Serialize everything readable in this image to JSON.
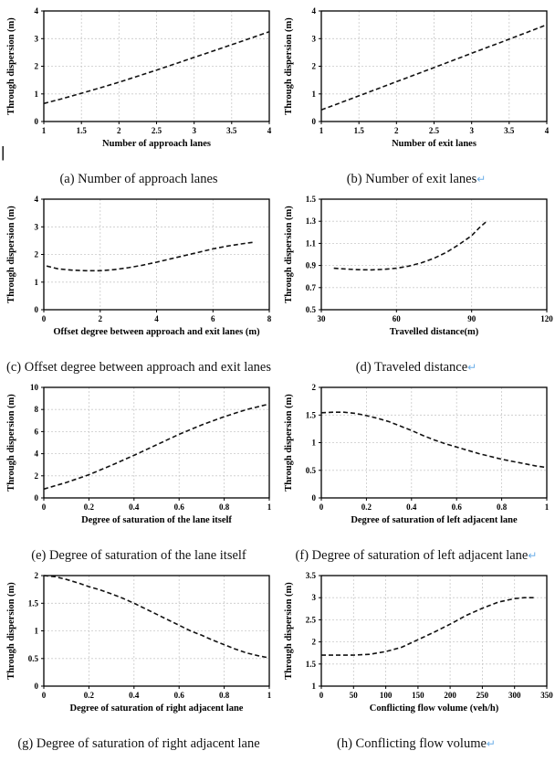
{
  "page": {
    "cursor_mark": "|",
    "return_mark": "↵",
    "return_mark_color": "#6fb0e8",
    "curve_color": "#121212",
    "grid_color": "#c9c9c9",
    "shared_ylabel": "Through dispersion (m)"
  },
  "chart_data": [
    {
      "type": "line",
      "id": "a",
      "caption": "(a) Number of approach lanes",
      "caption_return": false,
      "xlabel": "Number of approach lanes",
      "ylabel": "Through dispersion (m)",
      "xlim": [
        1,
        4
      ],
      "ylim": [
        0,
        4
      ],
      "xticks": [
        1,
        1.5,
        2,
        2.5,
        3,
        3.5,
        4
      ],
      "xtick_labels": [
        "1",
        "1.5",
        "2",
        "2.5",
        "3",
        "3.5",
        "4"
      ],
      "yticks": [
        0,
        1,
        2,
        3,
        4
      ],
      "ytick_labels": [
        "0",
        "1",
        "2",
        "3",
        "4"
      ],
      "grid": true,
      "line_style": "dashed",
      "points": [
        [
          1,
          0.65
        ],
        [
          1.25,
          0.83
        ],
        [
          1.5,
          1.02
        ],
        [
          1.75,
          1.22
        ],
        [
          2,
          1.42
        ],
        [
          2.25,
          1.64
        ],
        [
          2.5,
          1.86
        ],
        [
          2.75,
          2.09
        ],
        [
          3,
          2.32
        ],
        [
          3.25,
          2.55
        ],
        [
          3.5,
          2.78
        ],
        [
          3.75,
          3.01
        ],
        [
          4,
          3.25
        ]
      ]
    },
    {
      "type": "line",
      "id": "b",
      "caption": "(b) Number of exit lanes",
      "caption_return": true,
      "xlabel": "Number of exit lanes",
      "ylabel": "Through dispersion (m)",
      "xlim": [
        1,
        4
      ],
      "ylim": [
        0,
        4
      ],
      "xticks": [
        1,
        1.5,
        2,
        2.5,
        3,
        3.5,
        4
      ],
      "xtick_labels": [
        "1",
        "1.5",
        "2",
        "2.5",
        "3",
        "3.5",
        "4"
      ],
      "yticks": [
        0,
        1,
        2,
        3,
        4
      ],
      "ytick_labels": [
        "0",
        "1",
        "2",
        "3",
        "4"
      ],
      "grid": true,
      "line_style": "dashed",
      "points": [
        [
          1,
          0.42
        ],
        [
          1.5,
          0.93
        ],
        [
          2,
          1.44
        ],
        [
          2.5,
          1.95
        ],
        [
          3,
          2.47
        ],
        [
          3.5,
          2.98
        ],
        [
          4,
          3.5
        ]
      ]
    },
    {
      "type": "line",
      "id": "c",
      "caption": "(c) Offset degree between approach and exit lanes",
      "caption_return": false,
      "xlabel": "Offset degree between approach and exit lanes (m)",
      "ylabel": "Through dispersion (m)",
      "xlim": [
        0,
        8
      ],
      "ylim": [
        0,
        4
      ],
      "xticks": [
        0,
        2,
        4,
        6,
        8
      ],
      "xtick_labels": [
        "0",
        "2",
        "4",
        "6",
        "8"
      ],
      "yticks": [
        0,
        1,
        2,
        3,
        4
      ],
      "ytick_labels": [
        "0",
        "1",
        "2",
        "3",
        "4"
      ],
      "grid": true,
      "line_style": "dashed",
      "points": [
        [
          0.1,
          1.58
        ],
        [
          0.5,
          1.48
        ],
        [
          1,
          1.43
        ],
        [
          1.5,
          1.41
        ],
        [
          2,
          1.41
        ],
        [
          2.5,
          1.45
        ],
        [
          3,
          1.52
        ],
        [
          3.5,
          1.61
        ],
        [
          4,
          1.72
        ],
        [
          4.5,
          1.84
        ],
        [
          5,
          1.96
        ],
        [
          5.5,
          2.08
        ],
        [
          6,
          2.2
        ],
        [
          6.5,
          2.3
        ],
        [
          7,
          2.38
        ],
        [
          7.5,
          2.45
        ]
      ]
    },
    {
      "type": "line",
      "id": "d",
      "caption": "(d) Traveled distance",
      "caption_return": true,
      "xlabel": "Travelled distance(m)",
      "ylabel": "Through dispersion (m)",
      "xlim": [
        30,
        120
      ],
      "ylim": [
        0.5,
        1.5
      ],
      "xticks": [
        30,
        60,
        90,
        120
      ],
      "xtick_labels": [
        "30",
        "60",
        "90",
        "120"
      ],
      "yticks": [
        0.5,
        0.7,
        0.9,
        1.1,
        1.3,
        1.5
      ],
      "ytick_labels": [
        "0.5",
        "0.7",
        "0.9",
        "1.1",
        "1.3",
        "1.5"
      ],
      "grid": true,
      "line_style": "dashed",
      "points": [
        [
          35,
          0.875
        ],
        [
          40,
          0.868
        ],
        [
          45,
          0.862
        ],
        [
          50,
          0.86
        ],
        [
          55,
          0.865
        ],
        [
          60,
          0.875
        ],
        [
          65,
          0.895
        ],
        [
          70,
          0.925
        ],
        [
          75,
          0.965
        ],
        [
          80,
          1.02
        ],
        [
          85,
          1.09
        ],
        [
          90,
          1.17
        ],
        [
          93,
          1.24
        ],
        [
          96,
          1.3
        ]
      ]
    },
    {
      "type": "line",
      "id": "e",
      "caption": "(e) Degree of saturation of the lane itself",
      "caption_return": false,
      "xlabel": "Degree of saturation of the lane itself",
      "ylabel": "Through dispersion (m)",
      "xlim": [
        0,
        1
      ],
      "ylim": [
        0,
        10
      ],
      "xticks": [
        0,
        0.2,
        0.4,
        0.6,
        0.8,
        1
      ],
      "xtick_labels": [
        "0",
        "0.2",
        "0.4",
        "0.6",
        "0.8",
        "1"
      ],
      "yticks": [
        0,
        2,
        4,
        6,
        8,
        10
      ],
      "ytick_labels": [
        "0",
        "2",
        "4",
        "6",
        "8",
        "10"
      ],
      "grid": true,
      "line_style": "dashed",
      "points": [
        [
          0,
          0.8
        ],
        [
          0.1,
          1.4
        ],
        [
          0.2,
          2.1
        ],
        [
          0.3,
          2.95
        ],
        [
          0.4,
          3.85
        ],
        [
          0.5,
          4.8
        ],
        [
          0.6,
          5.75
        ],
        [
          0.7,
          6.6
        ],
        [
          0.8,
          7.35
        ],
        [
          0.9,
          8.0
        ],
        [
          1,
          8.5
        ]
      ]
    },
    {
      "type": "line",
      "id": "f",
      "caption": "(f) Degree of saturation of left adjacent lane",
      "caption_return": true,
      "xlabel": "Degree of saturation of left adjacent lane",
      "ylabel": "Through dispersion (m)",
      "xlim": [
        0,
        1
      ],
      "ylim": [
        0,
        2
      ],
      "xticks": [
        0,
        0.2,
        0.4,
        0.6,
        0.8,
        1
      ],
      "xtick_labels": [
        "0",
        "0.2",
        "0.4",
        "0.6",
        "0.8",
        "1"
      ],
      "yticks": [
        0,
        0.5,
        1,
        1.5,
        2
      ],
      "ytick_labels": [
        "0",
        "0.5",
        "1",
        "1.5",
        "2"
      ],
      "grid": true,
      "line_style": "dashed",
      "points": [
        [
          0,
          1.54
        ],
        [
          0.05,
          1.55
        ],
        [
          0.1,
          1.55
        ],
        [
          0.15,
          1.53
        ],
        [
          0.2,
          1.49
        ],
        [
          0.25,
          1.44
        ],
        [
          0.3,
          1.38
        ],
        [
          0.35,
          1.3
        ],
        [
          0.4,
          1.22
        ],
        [
          0.45,
          1.13
        ],
        [
          0.5,
          1.05
        ],
        [
          0.55,
          0.98
        ],
        [
          0.6,
          0.92
        ],
        [
          0.65,
          0.86
        ],
        [
          0.7,
          0.8
        ],
        [
          0.75,
          0.75
        ],
        [
          0.8,
          0.7
        ],
        [
          0.85,
          0.66
        ],
        [
          0.9,
          0.62
        ],
        [
          0.95,
          0.58
        ],
        [
          1,
          0.55
        ]
      ]
    },
    {
      "type": "line",
      "id": "g",
      "caption": "(g) Degree of saturation of right adjacent lane",
      "caption_return": false,
      "xlabel": "Degree of saturation of right adjacent lane",
      "ylabel": "Through dispersion (m)",
      "xlim": [
        0,
        1
      ],
      "ylim": [
        0,
        2
      ],
      "xticks": [
        0,
        0.2,
        0.4,
        0.6,
        0.8,
        1
      ],
      "xtick_labels": [
        "0",
        "0.2",
        "0.4",
        "0.6",
        "0.8",
        "1"
      ],
      "yticks": [
        0,
        0.5,
        1,
        1.5,
        2
      ],
      "ytick_labels": [
        "0",
        "0.5",
        "1",
        "1.5",
        "2"
      ],
      "grid": true,
      "line_style": "dashed",
      "points": [
        [
          0,
          2.0
        ],
        [
          0.05,
          1.98
        ],
        [
          0.1,
          1.93
        ],
        [
          0.15,
          1.87
        ],
        [
          0.2,
          1.8
        ],
        [
          0.25,
          1.74
        ],
        [
          0.3,
          1.67
        ],
        [
          0.35,
          1.59
        ],
        [
          0.4,
          1.5
        ],
        [
          0.45,
          1.4
        ],
        [
          0.5,
          1.3
        ],
        [
          0.55,
          1.2
        ],
        [
          0.6,
          1.1
        ],
        [
          0.65,
          1.0
        ],
        [
          0.7,
          0.92
        ],
        [
          0.75,
          0.83
        ],
        [
          0.8,
          0.75
        ],
        [
          0.85,
          0.67
        ],
        [
          0.9,
          0.6
        ],
        [
          0.95,
          0.55
        ],
        [
          1,
          0.51
        ]
      ]
    },
    {
      "type": "line",
      "id": "h",
      "caption": "(h) Conflicting flow volume",
      "caption_return": true,
      "xlabel": "Conflicting flow volume (veh/h)",
      "ylabel": "Through dispersion (m)",
      "xlim": [
        0,
        350
      ],
      "ylim": [
        1,
        3.5
      ],
      "xticks": [
        0,
        50,
        100,
        150,
        200,
        250,
        300,
        350
      ],
      "xtick_labels": [
        "0",
        "50",
        "100",
        "150",
        "200",
        "250",
        "300",
        "350"
      ],
      "yticks": [
        1,
        1.5,
        2,
        2.5,
        3,
        3.5
      ],
      "ytick_labels": [
        "1",
        "1.5",
        "2",
        "2.5",
        "3",
        "3.5"
      ],
      "grid": true,
      "line_style": "dashed",
      "points": [
        [
          0,
          1.7
        ],
        [
          25,
          1.7
        ],
        [
          50,
          1.7
        ],
        [
          75,
          1.72
        ],
        [
          100,
          1.78
        ],
        [
          125,
          1.88
        ],
        [
          150,
          2.05
        ],
        [
          175,
          2.22
        ],
        [
          200,
          2.4
        ],
        [
          225,
          2.6
        ],
        [
          250,
          2.76
        ],
        [
          275,
          2.9
        ],
        [
          300,
          2.98
        ],
        [
          315,
          3.0
        ],
        [
          330,
          3.0
        ]
      ]
    }
  ]
}
